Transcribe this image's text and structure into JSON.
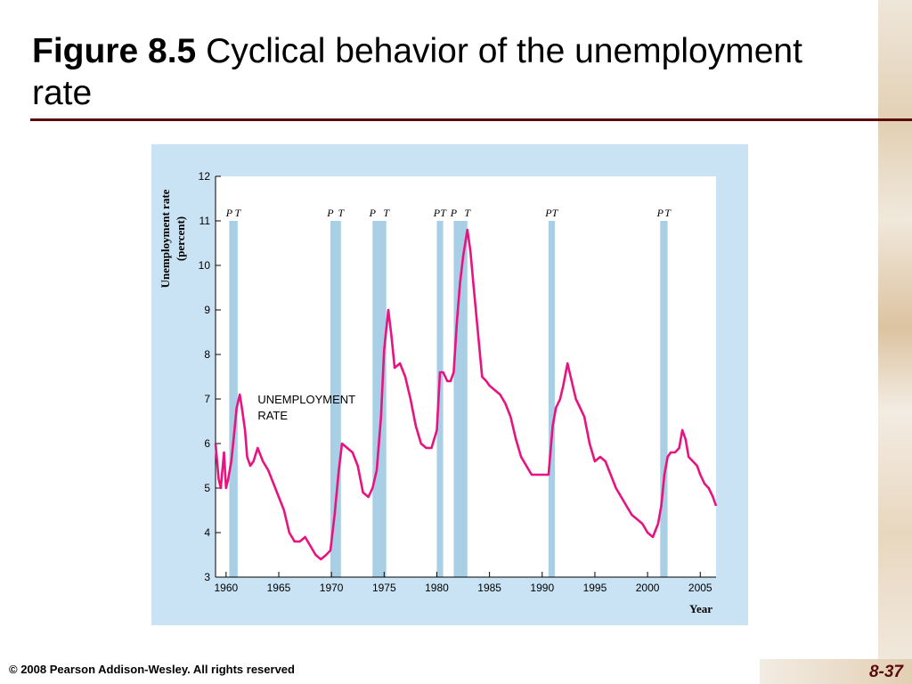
{
  "slide": {
    "title_bold": "Figure 8.5",
    "title_rest": " Cyclical behavior of the unemployment rate",
    "copyright": "© 2008 Pearson Addison-Wesley. All rights reserved",
    "page_number": "8-37"
  },
  "colors": {
    "title_rule": "#5a0a0a",
    "panel_bg": "#c9e3f4",
    "recession_band": "#a9cfe6",
    "series_line": "#e8137f"
  },
  "chart_data": {
    "type": "line",
    "title": "",
    "xlabel": "Year",
    "ylabel": "Unemployment rate (percent)",
    "xlim": [
      1959,
      2006.5
    ],
    "ylim": [
      3,
      12
    ],
    "x_ticks": [
      1960,
      1965,
      1970,
      1975,
      1980,
      1985,
      1990,
      1995,
      2000,
      2005
    ],
    "y_ticks": [
      3,
      4,
      5,
      6,
      7,
      8,
      9,
      10,
      11,
      12
    ],
    "grid": false,
    "annotation": [
      "UNEMPLOYMENT",
      "RATE"
    ],
    "recessions": [
      {
        "start": 1960.3,
        "end": 1961.1,
        "labels": [
          "P",
          "T"
        ]
      },
      {
        "start": 1969.9,
        "end": 1970.9,
        "labels": [
          "P",
          "T"
        ]
      },
      {
        "start": 1973.9,
        "end": 1975.2,
        "labels": [
          "P",
          "T"
        ]
      },
      {
        "start": 1980.0,
        "end": 1980.6,
        "labels": [
          "P",
          "T"
        ]
      },
      {
        "start": 1981.6,
        "end": 1982.9,
        "labels": [
          "P",
          "T"
        ]
      },
      {
        "start": 1990.6,
        "end": 1991.2,
        "labels": [
          "P",
          "T"
        ]
      },
      {
        "start": 2001.2,
        "end": 2001.9,
        "labels": [
          "P",
          "T"
        ]
      }
    ],
    "series": [
      {
        "name": "",
        "x": [
          1959.0,
          1959.3,
          1959.5,
          1959.8,
          1960.0,
          1960.2,
          1960.5,
          1960.8,
          1961.0,
          1961.3,
          1961.5,
          1961.8,
          1962.0,
          1962.3,
          1962.6,
          1963.0,
          1963.5,
          1964.0,
          1964.5,
          1965.0,
          1965.5,
          1966.0,
          1966.5,
          1967.0,
          1967.5,
          1968.0,
          1968.5,
          1969.0,
          1969.5,
          1969.9,
          1970.3,
          1970.7,
          1971.0,
          1971.5,
          1972.0,
          1972.5,
          1973.0,
          1973.5,
          1973.9,
          1974.3,
          1974.7,
          1975.0,
          1975.4,
          1975.7,
          1976.0,
          1976.5,
          1977.0,
          1977.5,
          1978.0,
          1978.5,
          1979.0,
          1979.5,
          1980.0,
          1980.3,
          1980.6,
          1981.0,
          1981.3,
          1981.6,
          1981.9,
          1982.2,
          1982.5,
          1982.9,
          1983.2,
          1983.5,
          1983.9,
          1984.3,
          1984.7,
          1985.0,
          1985.5,
          1986.0,
          1986.5,
          1987.0,
          1987.5,
          1988.0,
          1988.5,
          1989.0,
          1989.5,
          1990.0,
          1990.6,
          1991.0,
          1991.3,
          1991.7,
          1992.0,
          1992.4,
          1992.8,
          1993.2,
          1993.6,
          1994.0,
          1994.5,
          1995.0,
          1995.5,
          1996.0,
          1996.5,
          1997.0,
          1997.5,
          1998.0,
          1998.5,
          1999.0,
          1999.5,
          2000.0,
          2000.5,
          2001.0,
          2001.3,
          2001.6,
          2001.9,
          2002.2,
          2002.6,
          2003.0,
          2003.3,
          2003.6,
          2003.9,
          2004.3,
          2004.7,
          2005.0,
          2005.4,
          2005.8,
          2006.2,
          2006.5
        ],
        "y": [
          6.0,
          5.2,
          5.0,
          5.8,
          5.0,
          5.2,
          5.6,
          6.3,
          6.8,
          7.1,
          6.8,
          6.3,
          5.7,
          5.5,
          5.6,
          5.9,
          5.6,
          5.4,
          5.1,
          4.8,
          4.5,
          4.0,
          3.8,
          3.8,
          3.9,
          3.7,
          3.5,
          3.4,
          3.5,
          3.6,
          4.4,
          5.4,
          6.0,
          5.9,
          5.8,
          5.5,
          4.9,
          4.8,
          5.0,
          5.4,
          6.6,
          8.1,
          9.0,
          8.4,
          7.7,
          7.8,
          7.5,
          7.0,
          6.4,
          6.0,
          5.9,
          5.9,
          6.3,
          7.6,
          7.6,
          7.4,
          7.4,
          7.6,
          8.7,
          9.6,
          10.2,
          10.8,
          10.3,
          9.5,
          8.5,
          7.5,
          7.4,
          7.3,
          7.2,
          7.1,
          6.9,
          6.6,
          6.1,
          5.7,
          5.5,
          5.3,
          5.3,
          5.3,
          5.3,
          6.4,
          6.8,
          7.0,
          7.3,
          7.8,
          7.4,
          7.0,
          6.8,
          6.6,
          6.0,
          5.6,
          5.7,
          5.6,
          5.3,
          5.0,
          4.8,
          4.6,
          4.4,
          4.3,
          4.2,
          4.0,
          3.9,
          4.2,
          4.6,
          5.3,
          5.7,
          5.8,
          5.8,
          5.9,
          6.3,
          6.1,
          5.7,
          5.6,
          5.5,
          5.3,
          5.1,
          5.0,
          4.8,
          4.6
        ]
      }
    ]
  }
}
